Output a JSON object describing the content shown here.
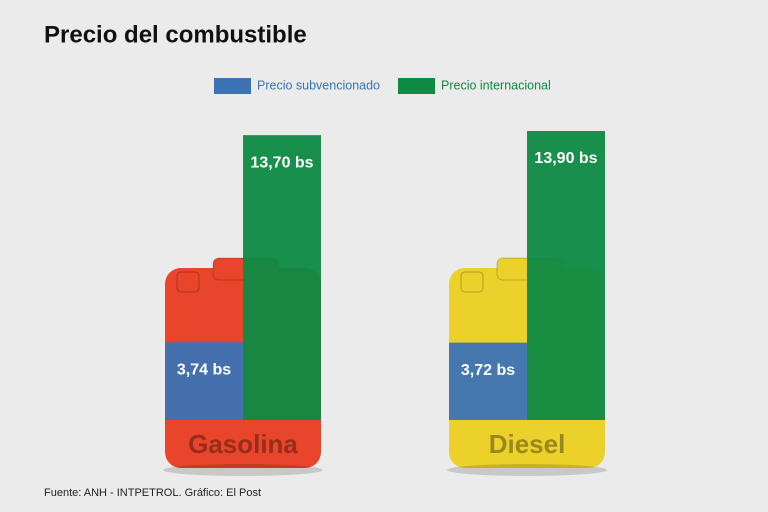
{
  "chart_data": {
    "type": "bar",
    "title": "Precio del combustible",
    "categories": [
      "Gasolina",
      "Diesel"
    ],
    "series": [
      {
        "name": "Precio subvencionado",
        "color": "#3b73b5",
        "values": [
          3.74,
          3.72
        ],
        "value_labels": [
          "3,74 bs",
          "3,72 bs"
        ]
      },
      {
        "name": "Precio internacional",
        "color": "#0e8a43",
        "values": [
          13.7,
          13.9
        ],
        "value_labels": [
          "13,70 bs",
          "13,90 bs"
        ]
      }
    ],
    "can_colors": [
      "#e8452a",
      "#ecd12a"
    ],
    "source": "Fuente: ANH - INTPETROL. Gráfico: El Post"
  }
}
